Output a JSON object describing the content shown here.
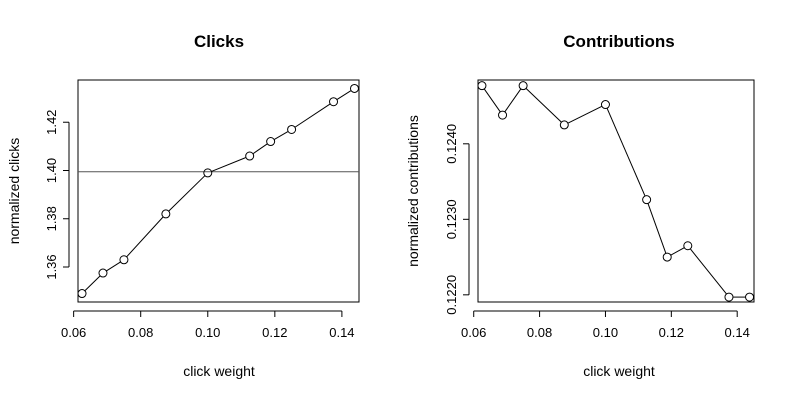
{
  "chart_data": [
    {
      "type": "line",
      "title": "Clicks",
      "xlabel": "click weight",
      "ylabel": "normalized clicks",
      "x": [
        0.0625,
        0.06875,
        0.075,
        0.0875,
        0.1,
        0.1125,
        0.11875,
        0.125,
        0.1375,
        0.14375
      ],
      "y": [
        1.349,
        1.3575,
        1.363,
        1.382,
        1.399,
        1.406,
        1.412,
        1.417,
        1.4285,
        1.434
      ],
      "xlim": [
        0.0613,
        0.1451
      ],
      "ylim": [
        1.3455,
        1.4375
      ],
      "xticks": [
        "0.06",
        "0.08",
        "0.10",
        "0.12",
        "0.14"
      ],
      "yticks": [
        "1.36",
        "1.38",
        "1.40",
        "1.42"
      ],
      "hline": 1.3995,
      "markers": "open-circle",
      "grid": false
    },
    {
      "type": "line",
      "title": "Contributions",
      "xlabel": "click weight",
      "ylabel": "normalized contributions",
      "x": [
        0.0625,
        0.06875,
        0.075,
        0.0875,
        0.1,
        0.1125,
        0.11875,
        0.125,
        0.1375,
        0.14375
      ],
      "y": [
        0.12477,
        0.12438,
        0.12477,
        0.12425,
        0.12452,
        0.12326,
        0.1225,
        0.12265,
        0.12197,
        0.12197
      ],
      "xlim": [
        0.0613,
        0.1451
      ],
      "ylim": [
        0.121905,
        0.124845
      ],
      "xticks": [
        "0.06",
        "0.08",
        "0.10",
        "0.12",
        "0.14"
      ],
      "yticks": [
        "0.1220",
        "0.1230",
        "0.1240"
      ],
      "markers": "open-circle",
      "grid": false
    }
  ]
}
